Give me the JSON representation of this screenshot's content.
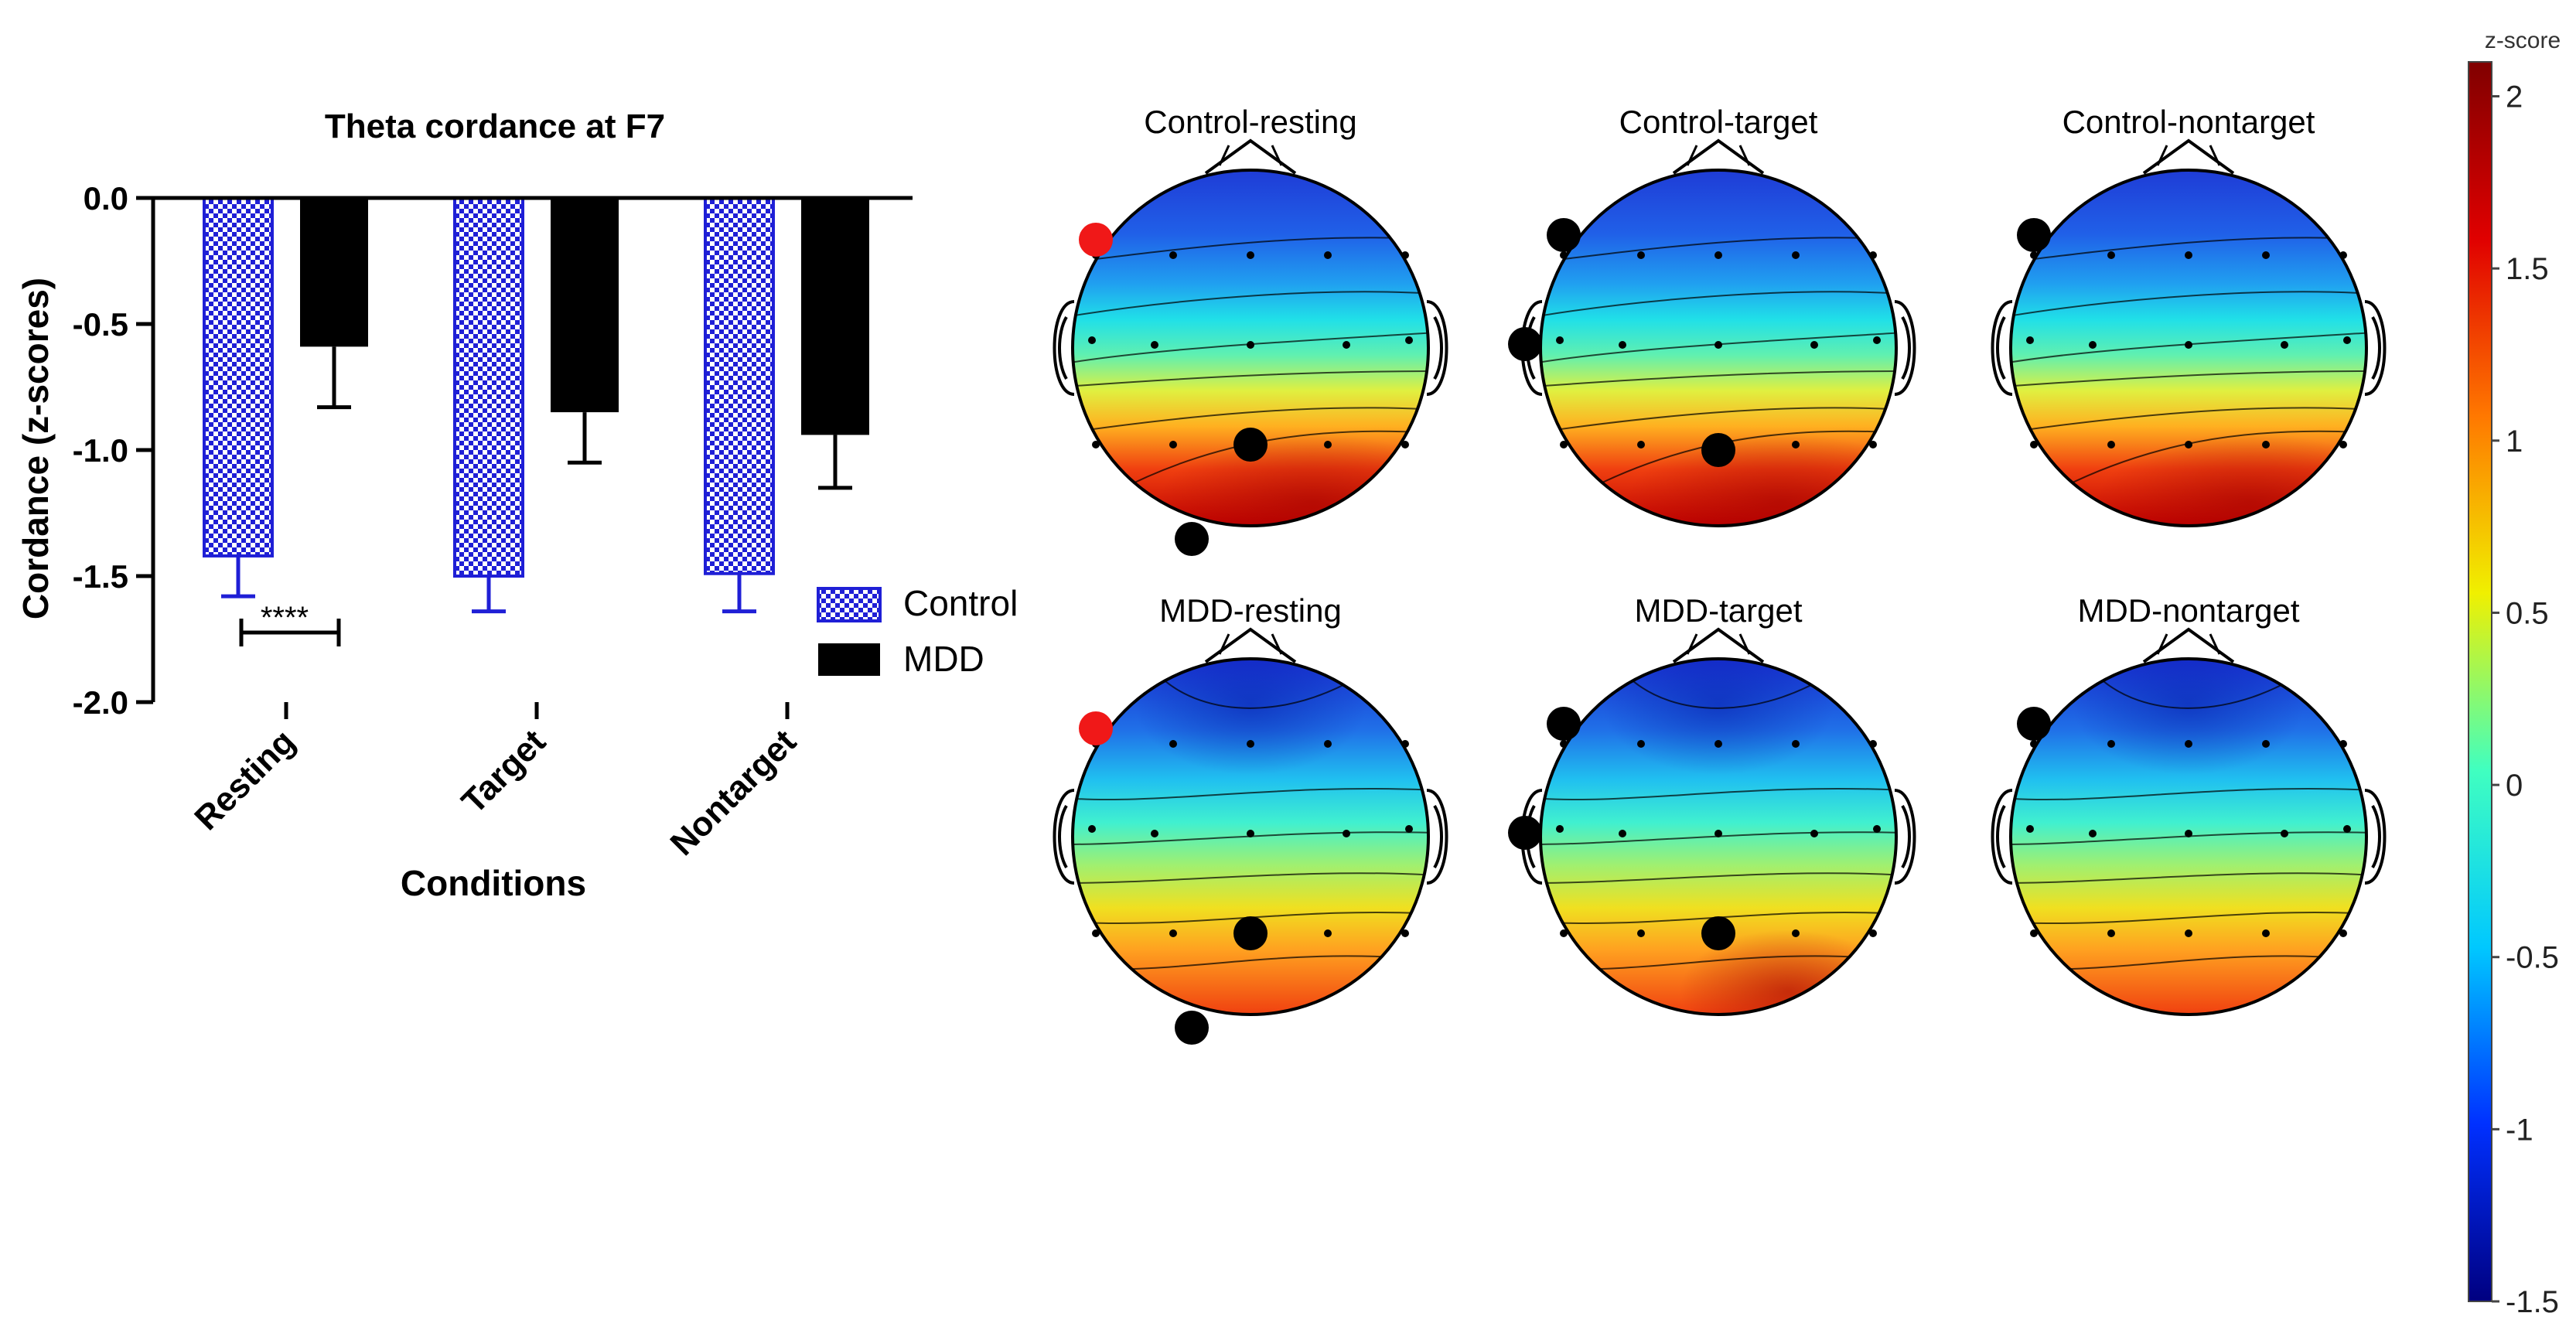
{
  "chart_data": [
    {
      "type": "bar",
      "title": "Theta cordance at F7",
      "xlabel": "Conditions",
      "ylabel": "Cordance (z-scores)",
      "ylim": [
        -2.0,
        0.0
      ],
      "yticks": [
        "0.0",
        "-0.5",
        "-1.0",
        "-1.5",
        "-2.0"
      ],
      "categories": [
        "Resting",
        "Target",
        "Nontarget"
      ],
      "series": [
        {
          "name": "Control",
          "values": [
            -1.42,
            -1.5,
            -1.49
          ],
          "errors": [
            0.16,
            0.14,
            0.15
          ],
          "color": "#1f1fd6",
          "pattern": "checkered"
        },
        {
          "name": "MDD",
          "values": [
            -0.59,
            -0.85,
            -0.94
          ],
          "errors": [
            0.24,
            0.2,
            0.21
          ],
          "color": "#000000",
          "pattern": "solid"
        }
      ],
      "annotation": {
        "text": "****",
        "category": "Resting"
      },
      "legend": "right"
    },
    {
      "type": "heatmap",
      "description_kind": "topographic head maps",
      "maps": [
        {
          "title": "Control-resting",
          "pattern": "control"
        },
        {
          "title": "Control-target",
          "pattern": "control"
        },
        {
          "title": "Control-nontarget",
          "pattern": "control"
        },
        {
          "title": "MDD-resting",
          "pattern": "mdd"
        },
        {
          "title": "MDD-target",
          "pattern": "mdd"
        },
        {
          "title": "MDD-nontarget",
          "pattern": "mdd"
        }
      ],
      "colorbar": {
        "label": "z-score",
        "range": [
          -1.5,
          2.1
        ],
        "ticks": [
          "2",
          "1.5",
          "1",
          "0.5",
          "0",
          "-0.5",
          "-1",
          "-1.5"
        ],
        "colors": [
          "#000080",
          "#0030ff",
          "#00c8ff",
          "#40ffc0",
          "#f0f000",
          "#ff7800",
          "#e00000",
          "#800000"
        ]
      }
    }
  ]
}
